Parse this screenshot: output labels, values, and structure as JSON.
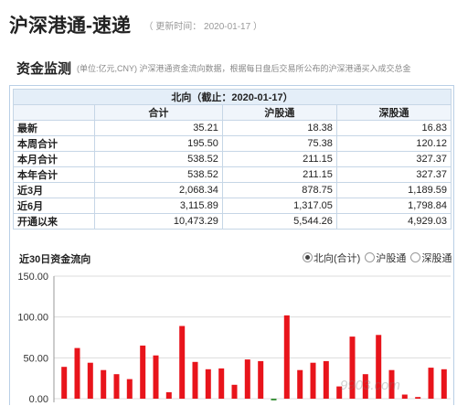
{
  "header": {
    "title": "沪深港通-速递",
    "updated": "（ 更新时间： 2020-01-17 ）"
  },
  "section": {
    "title": "资金监测",
    "desc": "(单位:亿元,CNY)   沪深港通资金流向数据，根据每日盘后交易所公布的沪深港通买入成交总金"
  },
  "table": {
    "caption": "北向（截止：2020-01-17）",
    "headers": [
      "合计",
      "沪股通",
      "深股通"
    ],
    "rows": [
      {
        "label": "最新",
        "total": "35.21",
        "sh": "18.38",
        "sz": "16.83"
      },
      {
        "label": "本周合计",
        "total": "195.50",
        "sh": "75.38",
        "sz": "120.12"
      },
      {
        "label": "本月合计",
        "total": "538.52",
        "sh": "211.15",
        "sz": "327.37"
      },
      {
        "label": "本年合计",
        "total": "538.52",
        "sh": "211.15",
        "sz": "327.37"
      },
      {
        "label": "近3月",
        "total": "2,068.34",
        "sh": "878.75",
        "sz": "1,189.59"
      },
      {
        "label": "近6月",
        "total": "3,115.89",
        "sh": "1,317.05",
        "sz": "1,798.84"
      },
      {
        "label": "开通以来",
        "total": "10,473.29",
        "sh": "5,544.26",
        "sz": "4,929.03"
      }
    ]
  },
  "chart_section": {
    "title": "近30日资金流向",
    "options": [
      {
        "label": "北向(合计)",
        "selected": true
      },
      {
        "label": "沪股通",
        "selected": false
      },
      {
        "label": "深股通",
        "selected": false
      }
    ]
  },
  "chart_data": {
    "type": "bar",
    "y_ticks": [
      "150.00",
      "100.00",
      "50.00",
      "0.00"
    ],
    "ylim": [
      0,
      150
    ],
    "grid": true,
    "bar_color": "#e8141b",
    "values": [
      39,
      62,
      44,
      35,
      30,
      24,
      65,
      53,
      8,
      89,
      45,
      36,
      37,
      17,
      48,
      46,
      -2,
      102,
      35,
      44,
      46,
      15,
      76,
      30,
      78,
      35,
      5,
      2,
      38,
      36
    ],
    "colors": [
      "#e8141b",
      "#e8141b",
      "#e8141b",
      "#e8141b",
      "#e8141b",
      "#e8141b",
      "#e8141b",
      "#e8141b",
      "#e8141b",
      "#e8141b",
      "#e8141b",
      "#e8141b",
      "#e8141b",
      "#e8141b",
      "#e8141b",
      "#e8141b",
      "#2e8b2e",
      "#e8141b",
      "#e8141b",
      "#e8141b",
      "#e8141b",
      "#e8141b",
      "#e8141b",
      "#e8141b",
      "#e8141b",
      "#e8141b",
      "#e8141b",
      "#e8141b",
      "#e8141b",
      "#e8141b"
    ]
  },
  "watermark": "9903.com"
}
